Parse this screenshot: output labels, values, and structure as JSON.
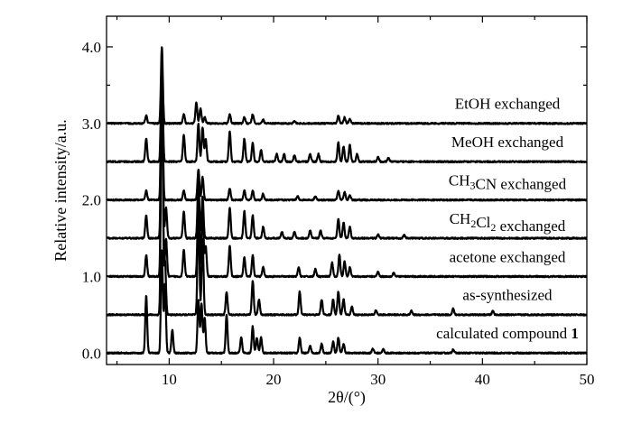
{
  "chart_data": {
    "type": "line",
    "title": "",
    "xlabel": "2θ/(°)",
    "ylabel": "Relative intensity/a.u.",
    "xlim": [
      4,
      50
    ],
    "ylim": [
      -0.15,
      4.4
    ],
    "x_ticks": [
      10,
      20,
      30,
      40,
      50
    ],
    "y_ticks": [
      0.0,
      1.0,
      2.0,
      3.0,
      4.0
    ],
    "y_tick_labels": [
      "0.0",
      "1.0",
      "2.0",
      "3.0",
      "4.0"
    ],
    "grid": false,
    "series": [
      {
        "name": "calculated compound 1",
        "label_parts": [
          {
            "t": "calculated compound "
          },
          {
            "t": "1",
            "b": true
          }
        ],
        "baseline": 0.0,
        "peaks": [
          [
            7.8,
            0.75
          ],
          [
            9.3,
            1.35
          ],
          [
            9.6,
            0.9
          ],
          [
            10.3,
            0.3
          ],
          [
            12.8,
            0.7
          ],
          [
            13.1,
            0.65
          ],
          [
            13.4,
            0.45
          ],
          [
            15.5,
            0.5
          ],
          [
            16.9,
            0.2
          ],
          [
            18.0,
            0.35
          ],
          [
            18.4,
            0.2
          ],
          [
            18.8,
            0.2
          ],
          [
            22.5,
            0.2
          ],
          [
            23.5,
            0.1
          ],
          [
            24.6,
            0.12
          ],
          [
            25.7,
            0.15
          ],
          [
            26.2,
            0.2
          ],
          [
            26.7,
            0.12
          ],
          [
            29.5,
            0.06
          ],
          [
            30.5,
            0.05
          ],
          [
            37.2,
            0.05
          ]
        ]
      },
      {
        "name": "as-synthesized",
        "label_parts": [
          {
            "t": "as-synthesized"
          }
        ],
        "baseline": 0.5,
        "peaks": [
          [
            9.3,
            3.5
          ],
          [
            9.6,
            0.7
          ],
          [
            12.8,
            1.35
          ],
          [
            13.2,
            1.0
          ],
          [
            15.5,
            0.3
          ],
          [
            18.0,
            0.45
          ],
          [
            18.6,
            0.2
          ],
          [
            22.5,
            0.3
          ],
          [
            24.6,
            0.2
          ],
          [
            25.7,
            0.2
          ],
          [
            26.2,
            0.3
          ],
          [
            26.7,
            0.2
          ],
          [
            27.5,
            0.1
          ],
          [
            29.8,
            0.06
          ],
          [
            33.2,
            0.05
          ],
          [
            37.2,
            0.08
          ],
          [
            41.0,
            0.05
          ]
        ]
      },
      {
        "name": "acetone exchanged",
        "label_parts": [
          {
            "t": "acetone exchanged"
          }
        ],
        "baseline": 1.0,
        "peaks": [
          [
            7.8,
            0.28
          ],
          [
            9.3,
            2.9
          ],
          [
            9.7,
            0.5
          ],
          [
            11.4,
            0.35
          ],
          [
            12.8,
            1.1
          ],
          [
            13.2,
            0.95
          ],
          [
            13.5,
            0.4
          ],
          [
            15.8,
            0.4
          ],
          [
            17.2,
            0.25
          ],
          [
            18.0,
            0.28
          ],
          [
            19.0,
            0.12
          ],
          [
            22.4,
            0.12
          ],
          [
            24.0,
            0.1
          ],
          [
            25.6,
            0.18
          ],
          [
            26.3,
            0.28
          ],
          [
            26.8,
            0.2
          ],
          [
            27.3,
            0.12
          ],
          [
            30.0,
            0.06
          ],
          [
            31.5,
            0.05
          ]
        ]
      },
      {
        "name": "CH2Cl2 exchanged",
        "label_parts": [
          {
            "t": "CH"
          },
          {
            "t": "2",
            "sub": true
          },
          {
            "t": "Cl"
          },
          {
            "t": "2",
            "sub": true
          },
          {
            "t": " exchanged"
          }
        ],
        "baseline": 1.5,
        "peaks": [
          [
            7.8,
            0.3
          ],
          [
            9.3,
            2.4
          ],
          [
            9.7,
            0.4
          ],
          [
            11.4,
            0.35
          ],
          [
            12.8,
            0.75
          ],
          [
            13.2,
            0.55
          ],
          [
            15.8,
            0.4
          ],
          [
            17.2,
            0.35
          ],
          [
            18.0,
            0.3
          ],
          [
            19.0,
            0.15
          ],
          [
            20.8,
            0.08
          ],
          [
            22.0,
            0.08
          ],
          [
            23.5,
            0.1
          ],
          [
            24.5,
            0.1
          ],
          [
            26.2,
            0.25
          ],
          [
            26.7,
            0.2
          ],
          [
            27.3,
            0.15
          ],
          [
            30.0,
            0.05
          ],
          [
            32.5,
            0.04
          ]
        ]
      },
      {
        "name": "CH3CN exchanged",
        "label_parts": [
          {
            "t": "CH"
          },
          {
            "t": "3",
            "sub": true
          },
          {
            "t": "CN exchanged"
          }
        ],
        "baseline": 2.0,
        "peaks": [
          [
            7.8,
            0.12
          ],
          [
            9.3,
            1.8
          ],
          [
            11.4,
            0.12
          ],
          [
            12.8,
            0.4
          ],
          [
            13.2,
            0.3
          ],
          [
            15.8,
            0.15
          ],
          [
            17.2,
            0.12
          ],
          [
            18.0,
            0.12
          ],
          [
            19.0,
            0.08
          ],
          [
            22.3,
            0.05
          ],
          [
            24.0,
            0.05
          ],
          [
            26.2,
            0.12
          ],
          [
            26.8,
            0.1
          ],
          [
            27.3,
            0.06
          ]
        ]
      },
      {
        "name": "MeOH exchanged",
        "label_parts": [
          {
            "t": "MeOH exchanged"
          }
        ],
        "baseline": 2.5,
        "peaks": [
          [
            7.8,
            0.3
          ],
          [
            9.3,
            1.4
          ],
          [
            11.4,
            0.35
          ],
          [
            12.8,
            0.5
          ],
          [
            13.2,
            0.45
          ],
          [
            13.5,
            0.3
          ],
          [
            15.8,
            0.4
          ],
          [
            17.2,
            0.3
          ],
          [
            18.0,
            0.25
          ],
          [
            18.8,
            0.15
          ],
          [
            20.3,
            0.1
          ],
          [
            21.0,
            0.1
          ],
          [
            22.0,
            0.08
          ],
          [
            23.5,
            0.1
          ],
          [
            24.3,
            0.1
          ],
          [
            26.2,
            0.25
          ],
          [
            26.7,
            0.2
          ],
          [
            27.3,
            0.22
          ],
          [
            28.0,
            0.1
          ],
          [
            30.0,
            0.06
          ],
          [
            31.0,
            0.05
          ]
        ]
      },
      {
        "name": "EtOH exchanged",
        "label_parts": [
          {
            "t": "EtOH exchanged"
          }
        ],
        "baseline": 3.0,
        "peaks": [
          [
            7.8,
            0.1
          ],
          [
            9.3,
            1.0
          ],
          [
            11.4,
            0.12
          ],
          [
            12.6,
            0.28
          ],
          [
            13.0,
            0.2
          ],
          [
            13.4,
            0.08
          ],
          [
            15.8,
            0.12
          ],
          [
            17.2,
            0.08
          ],
          [
            18.0,
            0.12
          ],
          [
            19.0,
            0.05
          ],
          [
            22.0,
            0.03
          ],
          [
            26.2,
            0.1
          ],
          [
            26.8,
            0.08
          ],
          [
            27.3,
            0.06
          ]
        ]
      }
    ]
  }
}
